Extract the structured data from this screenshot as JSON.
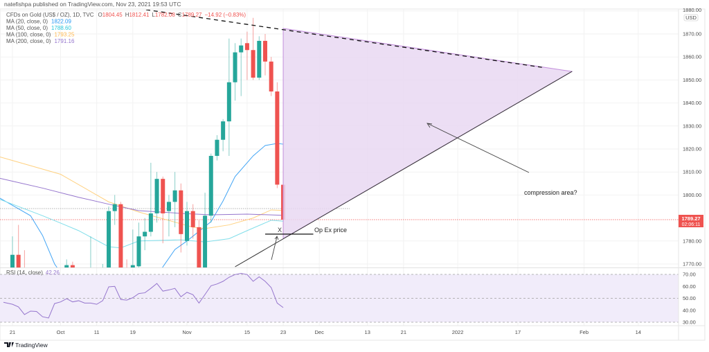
{
  "header": {
    "published": "natefishpa published on TradingView.com, Nov 23, 2021 19:53 UTC"
  },
  "legend": {
    "symbol": "CFDs on Gold (US$ / OZ), 1D, TVC",
    "o_label": "O",
    "o": "1804.45",
    "h_label": "H",
    "h": "1812.41",
    "l_label": "L",
    "l": "1782.08",
    "c_label": "C",
    "c": "1789.27",
    "change": "−14.92 (−0.83%)",
    "ma": [
      {
        "label": "MA (20, close, 0)",
        "value": "1822.09",
        "color": "#2196f3"
      },
      {
        "label": "MA (50, close, 0)",
        "value": "1788.60",
        "color": "#26c6da"
      },
      {
        "label": "MA (100, close, 0)",
        "value": "1793.25",
        "color": "#ffb74d"
      },
      {
        "label": "MA (200, close, 0)",
        "value": "1791.16",
        "color": "#9575cd"
      }
    ]
  },
  "colors": {
    "up": "#26a69a",
    "down": "#ef5350",
    "rsi": "#9575cd",
    "rsi_band": "#f1ecfa",
    "triangle_fill": "#e9d8f2",
    "triangle_edge": "#c38fdc"
  },
  "price_axis": {
    "currency": "USD",
    "ticks": [
      "1880.00",
      "1870.00",
      "1860.00",
      "1850.00",
      "1840.00",
      "1830.00",
      "1820.00",
      "1810.00",
      "1800.00",
      "1780.00",
      "1770.00"
    ],
    "tick_values": [
      1880,
      1870,
      1860,
      1850,
      1840,
      1830,
      1820,
      1810,
      1800,
      1780,
      1770
    ],
    "last_price": "1789.27",
    "last_price_value": 1789.27,
    "countdown": "02:06:11",
    "ref_line_value": 1794.1
  },
  "rsi": {
    "label": "RSI (14, close)",
    "value": "42.26",
    "ticks": [
      "70.00",
      "60.00",
      "50.00",
      "40.00",
      "30.00"
    ],
    "tick_values": [
      70,
      60,
      50,
      40,
      30
    ],
    "band": [
      30,
      70
    ],
    "values": [
      45,
      42.8,
      36.4,
      39.3,
      39,
      34.6,
      33.5,
      45.6,
      47,
      49.7,
      47,
      48,
      46,
      46,
      45,
      48,
      59.6,
      60,
      49,
      48.5,
      50.5,
      54,
      54.6,
      58.3,
      62.4,
      56,
      57,
      58.3,
      51.3,
      55,
      53,
      46,
      53.2,
      60.5,
      62,
      64.2,
      67.6,
      69.9,
      70.9,
      69.9,
      64.2,
      68,
      64.2,
      59,
      46,
      42.26
    ]
  },
  "time_axis": [
    {
      "label": "21",
      "date": "2021-09-21"
    },
    {
      "label": "Oct",
      "date": "2021-10-01"
    },
    {
      "label": "11",
      "date": "2021-10-11"
    },
    {
      "label": "19",
      "date": "2021-10-19"
    },
    {
      "label": "Nov",
      "date": "2021-11-01"
    },
    {
      "label": "15",
      "date": "2021-11-15"
    },
    {
      "label": "23",
      "date": "2021-11-23"
    },
    {
      "label": "Dec",
      "date": "2021-12-01"
    },
    {
      "label": "13",
      "date": "2021-12-13"
    },
    {
      "label": "21",
      "date": "2021-12-21"
    },
    {
      "label": "2022",
      "date": "2022-01-03"
    },
    {
      "label": "17",
      "date": "2022-01-17"
    },
    {
      "label": "Feb",
      "date": "2022-02-01"
    },
    {
      "label": "14",
      "date": "2022-02-14"
    }
  ],
  "candles": [
    [
      "2021-09-21",
      1762,
      1782,
      1760,
      1774
    ],
    [
      "2021-09-22",
      1774,
      1787,
      1765,
      1766
    ],
    [
      "2021-09-23",
      1766,
      1776,
      1742,
      1745
    ],
    [
      "2021-09-24",
      1745,
      1753,
      1737,
      1750
    ],
    [
      "2021-09-27",
      1750,
      1755,
      1740,
      1751
    ],
    [
      "2021-09-28",
      1751,
      1752,
      1726,
      1735
    ],
    [
      "2021-09-29",
      1735,
      1739,
      1721,
      1726
    ],
    [
      "2021-09-30",
      1726,
      1765,
      1722,
      1757
    ],
    [
      "2021-10-01",
      1757,
      1765,
      1749,
      1761
    ],
    [
      "2021-10-04",
      1761,
      1772,
      1754,
      1769.5
    ],
    [
      "2021-10-05",
      1769.5,
      1771,
      1746,
      1760
    ],
    [
      "2021-10-06",
      1760,
      1766,
      1746,
      1763
    ],
    [
      "2021-10-07",
      1763,
      1765,
      1753,
      1756
    ],
    [
      "2021-10-08",
      1756,
      1782,
      1750,
      1757
    ],
    [
      "2021-10-11",
      1757,
      1764,
      1751,
      1754
    ],
    [
      "2021-10-12",
      1754,
      1770,
      1748,
      1761
    ],
    [
      "2021-10-13",
      1761,
      1795,
      1759,
      1793
    ],
    [
      "2021-10-14",
      1793,
      1800,
      1787,
      1796
    ],
    [
      "2021-10-15",
      1796,
      1797,
      1765,
      1768
    ],
    [
      "2021-10-18",
      1768,
      1772,
      1760,
      1766
    ],
    [
      "2021-10-19",
      1766,
      1785,
      1764,
      1769.5
    ],
    [
      "2021-10-20",
      1769,
      1788,
      1766,
      1782
    ],
    [
      "2021-10-21",
      1782,
      1790,
      1776,
      1784
    ],
    [
      "2021-10-22",
      1784,
      1814,
      1782,
      1792
    ],
    [
      "2021-10-25",
      1792,
      1810,
      1788,
      1807
    ],
    [
      "2021-10-26",
      1807,
      1808,
      1779,
      1792
    ],
    [
      "2021-10-27",
      1793,
      1800,
      1782,
      1797
    ],
    [
      "2021-10-28",
      1797,
      1810,
      1786,
      1802
    ],
    [
      "2021-10-29",
      1802,
      1805,
      1775,
      1783
    ],
    [
      "2021-11-01",
      1780,
      1797,
      1778,
      1793
    ],
    [
      "2021-11-02",
      1793,
      1796,
      1781,
      1786
    ],
    [
      "2021-11-03",
      1786,
      1789,
      1758,
      1761
    ],
    [
      "2021-11-04",
      1761,
      1801,
      1759,
      1791
    ],
    [
      "2021-11-05",
      1791,
      1818,
      1788,
      1817
    ],
    [
      "2021-11-08",
      1817,
      1826,
      1815,
      1824
    ],
    [
      "2021-11-09",
      1824,
      1833,
      1819,
      1832
    ],
    [
      "2021-11-10",
      1832,
      1868,
      1817,
      1849
    ],
    [
      "2021-11-11",
      1849,
      1866,
      1841,
      1862
    ],
    [
      "2021-11-12",
      1862,
      1868,
      1843,
      1865
    ],
    [
      "2021-11-15",
      1866,
      1871,
      1850,
      1863
    ],
    [
      "2021-11-16",
      1863,
      1877,
      1850,
      1851
    ],
    [
      "2021-11-17",
      1851,
      1869,
      1850,
      1867
    ],
    [
      "2021-11-18",
      1867,
      1870,
      1852,
      1858
    ],
    [
      "2021-11-19",
      1858,
      1860,
      1843,
      1845
    ],
    [
      "2021-11-22",
      1845,
      1849,
      1803,
      1804.5
    ],
    [
      "2021-11-23",
      1804.45,
      1812.41,
      1782.08,
      1789.27
    ]
  ],
  "moving_averages": [
    {
      "name": "MA 20",
      "color": "#42a5f5",
      "points": [
        [
          "2021-09-21",
          1795.5
        ],
        [
          "2021-09-24",
          1791
        ],
        [
          "2021-09-28",
          1782.4
        ],
        [
          "2021-09-30",
          1770
        ],
        [
          "2021-10-06",
          1755
        ],
        [
          "2021-10-20",
          1755
        ],
        [
          "2021-10-25",
          1765
        ],
        [
          "2021-10-28",
          1776.3
        ],
        [
          "2021-11-01",
          1780
        ],
        [
          "2021-11-05",
          1788.4
        ],
        [
          "2021-11-09",
          1797.4
        ],
        [
          "2021-11-11",
          1808
        ],
        [
          "2021-11-16",
          1817
        ],
        [
          "2021-11-18",
          1821.5
        ],
        [
          "2021-11-22",
          1822.4
        ],
        [
          "2021-11-23",
          1822.09
        ]
      ]
    },
    {
      "name": "MA 50",
      "color": "#80deea",
      "points": [
        [
          "2021-09-21",
          1796
        ],
        [
          "2021-09-28",
          1791
        ],
        [
          "2021-10-01",
          1787.8
        ],
        [
          "2021-10-06",
          1784.5
        ],
        [
          "2021-10-13",
          1777.5
        ],
        [
          "2021-10-15",
          1777
        ],
        [
          "2021-10-20",
          1780
        ],
        [
          "2021-10-29",
          1780.5
        ],
        [
          "2021-11-04",
          1779.6
        ],
        [
          "2021-11-10",
          1781
        ],
        [
          "2021-11-15",
          1784.5
        ],
        [
          "2021-11-19",
          1789
        ],
        [
          "2021-11-23",
          1788.6
        ]
      ]
    },
    {
      "name": "MA 100",
      "color": "#ffd180",
      "points": [
        [
          "2021-09-21",
          1815
        ],
        [
          "2021-10-01",
          1809
        ],
        [
          "2021-10-13",
          1797
        ],
        [
          "2021-10-20",
          1792.6
        ],
        [
          "2021-11-02",
          1786
        ],
        [
          "2021-11-04",
          1785.4
        ],
        [
          "2021-11-10",
          1787
        ],
        [
          "2021-11-16",
          1790
        ],
        [
          "2021-11-19",
          1793.5
        ],
        [
          "2021-11-23",
          1793.25
        ]
      ]
    },
    {
      "name": "MA 200",
      "color": "#9575cd",
      "points": [
        [
          "2021-09-21",
          1806
        ],
        [
          "2021-09-28",
          1803
        ],
        [
          "2021-10-06",
          1799
        ],
        [
          "2021-10-13",
          1796
        ],
        [
          "2021-10-20",
          1793.2
        ],
        [
          "2021-10-29",
          1792
        ],
        [
          "2021-11-05",
          1791.4
        ],
        [
          "2021-11-15",
          1791.7
        ],
        [
          "2021-11-23",
          1791.16
        ]
      ]
    }
  ],
  "drawings": {
    "triangle": [
      [
        "2021-11-23",
        1872.4
      ],
      [
        "2022-01-28",
        1853.7
      ],
      [
        "2021-11-23",
        1781
      ]
    ],
    "upper_trendline": [
      [
        "2021-10-20",
        1881
      ],
      [
        "2022-01-21",
        1855.5
      ]
    ],
    "lower_trendline": [
      [
        "2021-11-11",
        1768.8
      ],
      [
        "2022-01-28",
        1853.7
      ]
    ],
    "opex_line": [
      [
        "2021-11-18",
        1783
      ],
      [
        "2021-11-30",
        1783
      ]
    ],
    "opex_marker": "X",
    "opex_label": "Op Ex price",
    "compression_label": "compression area?"
  },
  "footer": {
    "brand": "TradingView"
  }
}
